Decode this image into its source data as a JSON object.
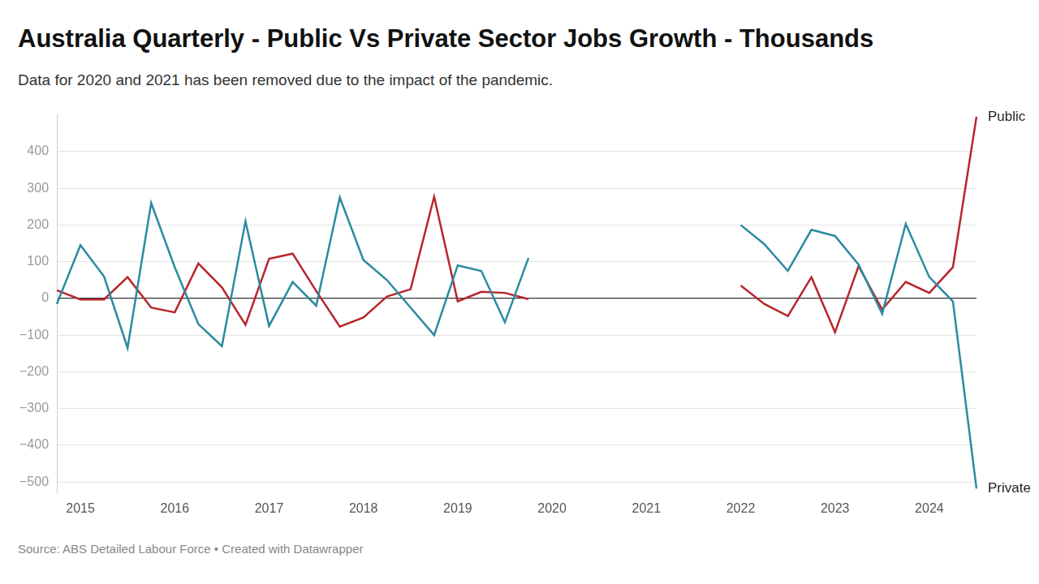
{
  "chart_data": {
    "type": "line",
    "title": "Australia Quarterly - Public Vs Private Sector Jobs Growth  - Thousands",
    "subtitle": "Data for 2020 and 2021 has been removed due to the impact of the pandemic.",
    "source": "Source: ABS Detailed Labour Force • Created with Datawrapper",
    "categories": [
      null,
      "2015",
      null,
      null,
      null,
      "2016",
      null,
      null,
      null,
      "2017",
      null,
      null,
      null,
      "2018",
      null,
      null,
      null,
      "2019",
      null,
      null,
      null,
      "2020",
      null,
      null,
      null,
      "2021",
      null,
      null,
      null,
      "2022",
      null,
      null,
      null,
      "2023",
      null,
      null,
      null,
      "2024",
      null,
      null
    ],
    "series": [
      {
        "name": "Private",
        "color": "#2a8ba0",
        "values": [
          -15,
          145,
          60,
          -135,
          260,
          85,
          -70,
          -130,
          210,
          -75,
          45,
          -20,
          275,
          105,
          50,
          -25,
          -100,
          90,
          75,
          -65,
          110,
          null,
          null,
          null,
          null,
          null,
          null,
          null,
          null,
          200,
          148,
          75,
          187,
          170,
          92,
          -42,
          203,
          58,
          -8,
          -518
        ]
      },
      {
        "name": "Public",
        "color": "#b8252c",
        "values": [
          22,
          -3,
          -3,
          58,
          -25,
          -38,
          95,
          30,
          -72,
          108,
          122,
          20,
          -77,
          -52,
          5,
          25,
          277,
          -8,
          18,
          15,
          -2,
          null,
          null,
          null,
          null,
          null,
          null,
          null,
          null,
          35,
          -15,
          -48,
          58,
          -92,
          88,
          -30,
          45,
          15,
          85,
          495
        ]
      }
    ],
    "ylim": [
      -530,
      500
    ],
    "yticks": [
      {
        "value": -500,
        "label": "−500"
      },
      {
        "value": -400,
        "label": "−400"
      },
      {
        "value": -300,
        "label": "−300"
      },
      {
        "value": -200,
        "label": "−200"
      },
      {
        "value": -100,
        "label": "−100"
      },
      0,
      100,
      200,
      300,
      400
    ],
    "grid": true,
    "line_style": "solid",
    "marker": "none"
  }
}
